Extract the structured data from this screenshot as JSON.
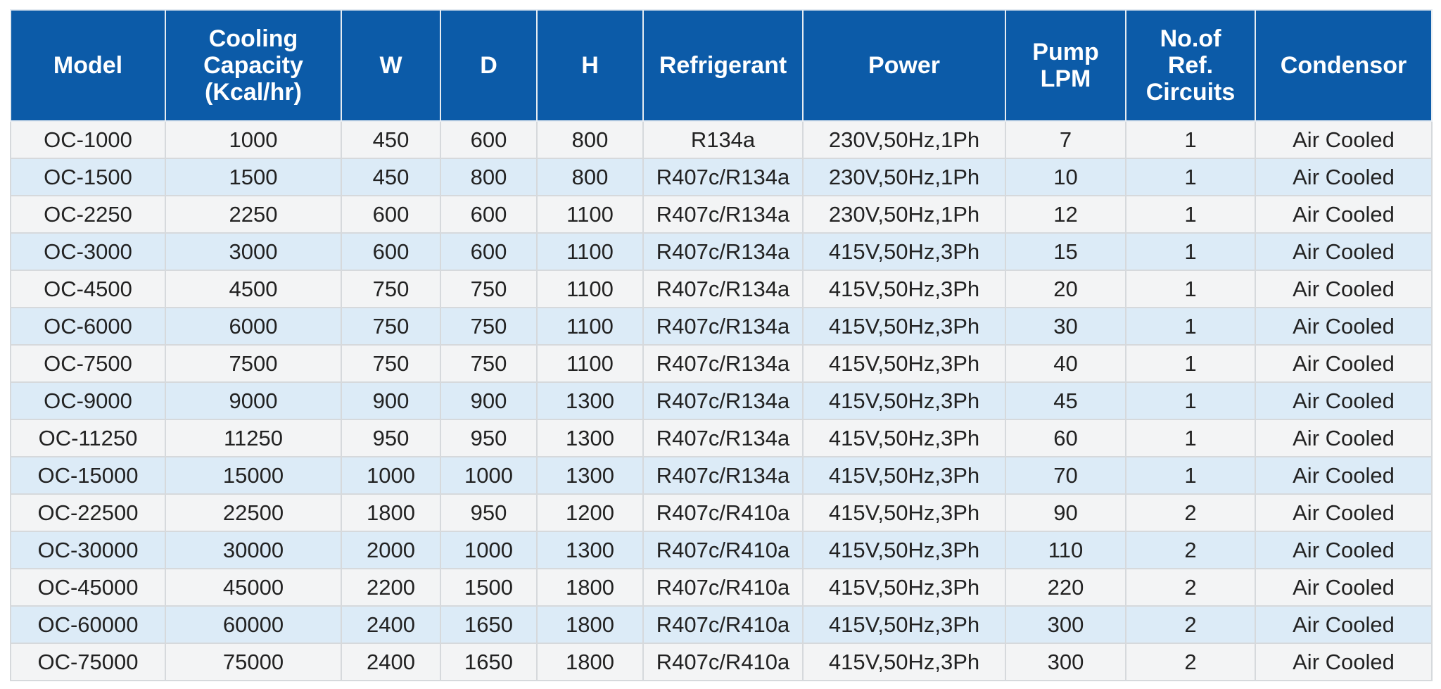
{
  "table": {
    "header": [
      [
        "Model"
      ],
      [
        "Cooling",
        "Capacity",
        "(Kcal/hr)"
      ],
      [
        "W"
      ],
      [
        "D"
      ],
      [
        "H"
      ],
      [
        "Refrigerant"
      ],
      [
        "Power"
      ],
      [
        "Pump",
        "LPM"
      ],
      [
        "No.of",
        "Ref.",
        "Circuits"
      ],
      [
        "Condensor"
      ]
    ],
    "rows": [
      [
        "OC-1000",
        1000,
        450,
        600,
        800,
        "R134a",
        "230V,50Hz,1Ph",
        7,
        1,
        "Air Cooled"
      ],
      [
        "OC-1500",
        1500,
        450,
        800,
        800,
        "R407c/R134a",
        "230V,50Hz,1Ph",
        10,
        1,
        "Air Cooled"
      ],
      [
        "OC-2250",
        2250,
        600,
        600,
        1100,
        "R407c/R134a",
        "230V,50Hz,1Ph",
        12,
        1,
        "Air Cooled"
      ],
      [
        "OC-3000",
        3000,
        600,
        600,
        1100,
        "R407c/R134a",
        "415V,50Hz,3Ph",
        15,
        1,
        "Air Cooled"
      ],
      [
        "OC-4500",
        4500,
        750,
        750,
        1100,
        "R407c/R134a",
        "415V,50Hz,3Ph",
        20,
        1,
        "Air Cooled"
      ],
      [
        "OC-6000",
        6000,
        750,
        750,
        1100,
        "R407c/R134a",
        "415V,50Hz,3Ph",
        30,
        1,
        "Air Cooled"
      ],
      [
        "OC-7500",
        7500,
        750,
        750,
        1100,
        "R407c/R134a",
        "415V,50Hz,3Ph",
        40,
        1,
        "Air Cooled"
      ],
      [
        "OC-9000",
        9000,
        900,
        900,
        1300,
        "R407c/R134a",
        "415V,50Hz,3Ph",
        45,
        1,
        "Air Cooled"
      ],
      [
        "OC-11250",
        11250,
        950,
        950,
        1300,
        "R407c/R134a",
        "415V,50Hz,3Ph",
        60,
        1,
        "Air Cooled"
      ],
      [
        "OC-15000",
        15000,
        1000,
        1000,
        1300,
        "R407c/R134a",
        "415V,50Hz,3Ph",
        70,
        1,
        "Air Cooled"
      ],
      [
        "OC-22500",
        22500,
        1800,
        950,
        1200,
        "R407c/R410a",
        "415V,50Hz,3Ph",
        90,
        2,
        "Air Cooled"
      ],
      [
        "OC-30000",
        30000,
        2000,
        1000,
        1300,
        "R407c/R410a",
        "415V,50Hz,3Ph",
        110,
        2,
        "Air Cooled"
      ],
      [
        "OC-45000",
        45000,
        2200,
        1500,
        1800,
        "R407c/R410a",
        "415V,50Hz,3Ph",
        220,
        2,
        "Air Cooled"
      ],
      [
        "OC-60000",
        60000,
        2400,
        1650,
        1800,
        "R407c/R410a",
        "415V,50Hz,3Ph",
        300,
        2,
        "Air Cooled"
      ],
      [
        "OC-75000",
        75000,
        2400,
        1650,
        1800,
        "R407c/R410a",
        "415V,50Hz,3Ph",
        300,
        2,
        "Air Cooled"
      ]
    ]
  }
}
